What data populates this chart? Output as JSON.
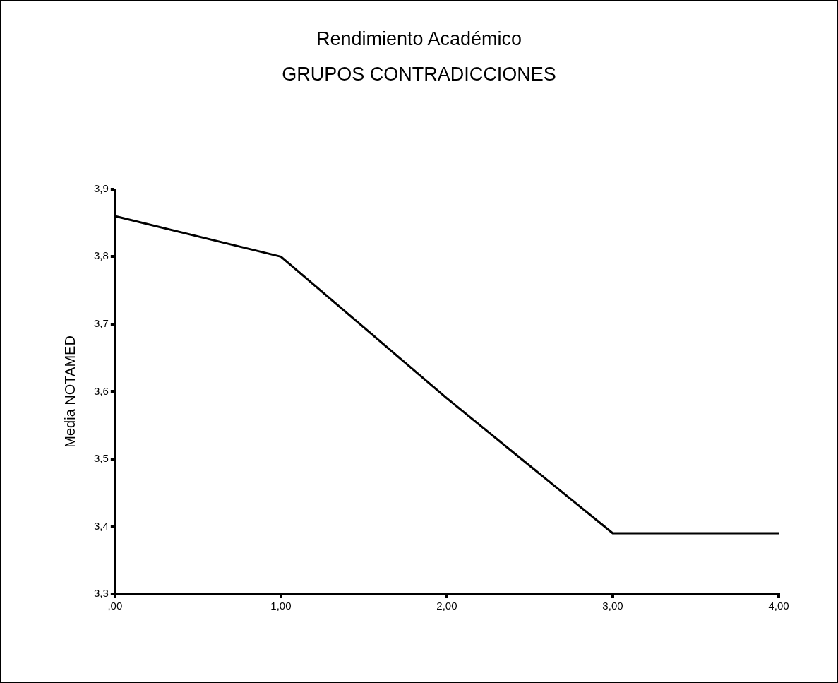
{
  "chart_data": {
    "type": "line",
    "title": "Rendimiento Académico",
    "subtitle": "GRUPOS CONTRADICCIONES",
    "ylabel": "Media NOTAMED",
    "x": [
      0,
      1,
      2,
      3,
      4
    ],
    "series": [
      {
        "color": "#000000",
        "values": [
          3.86,
          3.8,
          3.59,
          3.39,
          3.39
        ]
      }
    ],
    "xlim": [
      0,
      4
    ],
    "xticks": [
      {
        "value": 0,
        "label": ",00"
      },
      {
        "value": 1,
        "label": "1,00"
      },
      {
        "value": 2,
        "label": "2,00"
      },
      {
        "value": 3,
        "label": "3,00"
      },
      {
        "value": 4,
        "label": "4,00"
      }
    ],
    "ylim": [
      3.3,
      3.9
    ],
    "yticks": [
      {
        "value": 3.3,
        "label": "3,3"
      },
      {
        "value": 3.4,
        "label": "3,4"
      },
      {
        "value": 3.5,
        "label": "3,5"
      },
      {
        "value": 3.6,
        "label": "3,6"
      },
      {
        "value": 3.7,
        "label": "3,7"
      },
      {
        "value": 3.8,
        "label": "3,8"
      },
      {
        "value": 3.9,
        "label": "3,9"
      }
    ],
    "grid": false,
    "legend": false,
    "marker": "none",
    "line_style": "solid"
  }
}
